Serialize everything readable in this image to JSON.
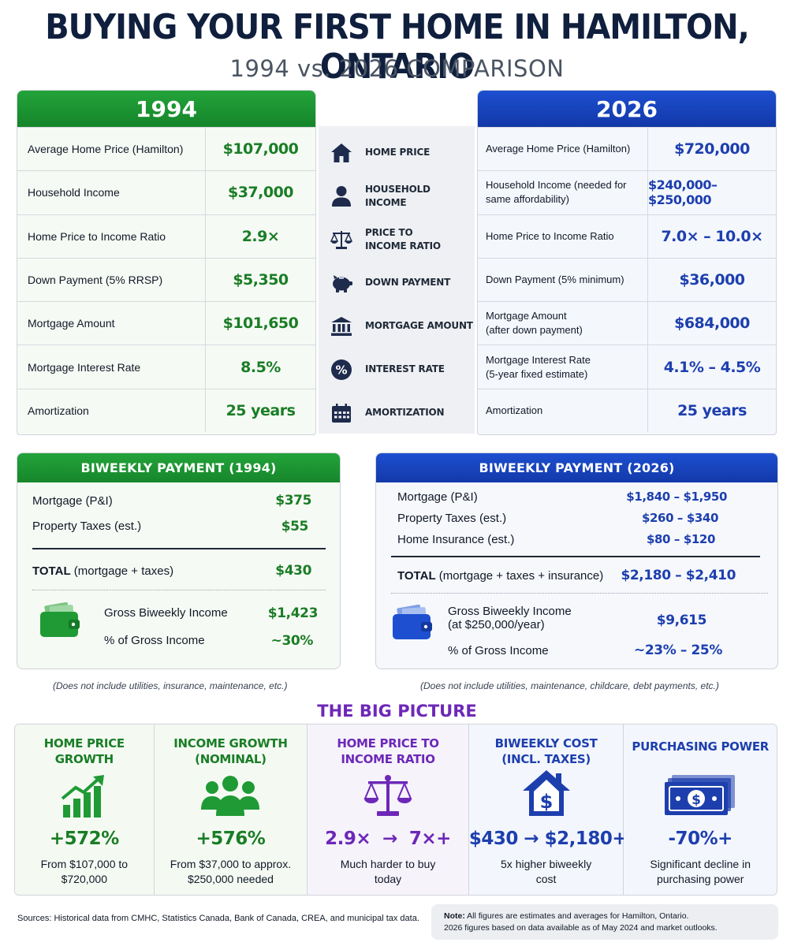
{
  "header": {
    "title": "BUYING YOUR FIRST HOME IN HAMILTON, ONTARIO",
    "subtitle": "1994 vs. 2026 COMPARISON"
  },
  "table_1994": {
    "year": "1994",
    "rows": [
      {
        "label": "Average Home Price (Hamilton)",
        "value": "$107,000"
      },
      {
        "label": "Household Income",
        "value": "$37,000"
      },
      {
        "label": "Home Price to Income Ratio",
        "value": "2.9×"
      },
      {
        "label": "Down Payment (5% RRSP)",
        "value": "$5,350"
      },
      {
        "label": "Mortgage Amount",
        "value": "$101,650"
      },
      {
        "label": "Mortgage Interest Rate",
        "value": "8.5%"
      },
      {
        "label": "Amortization",
        "value": "25 years"
      }
    ]
  },
  "categories": [
    {
      "icon": "house-icon",
      "label_1": "HOME PRICE",
      "label_2": ""
    },
    {
      "icon": "person-icon",
      "label_1": "HOUSEHOLD INCOME",
      "label_2": ""
    },
    {
      "icon": "scales-icon",
      "label_1": "PRICE TO",
      "label_2": "INCOME RATIO"
    },
    {
      "icon": "piggy-bank-icon",
      "label_1": "DOWN PAYMENT",
      "label_2": ""
    },
    {
      "icon": "bank-icon",
      "label_1": "MORTGAGE AMOUNT",
      "label_2": ""
    },
    {
      "icon": "percent-icon",
      "label_1": "INTEREST RATE",
      "label_2": ""
    },
    {
      "icon": "calendar-icon",
      "label_1": "AMORTIZATION",
      "label_2": ""
    }
  ],
  "table_2026": {
    "year": "2026",
    "rows": [
      {
        "label_1": "Average Home Price (Hamilton)",
        "label_2": "",
        "value": "$720,000"
      },
      {
        "label_1": "Household Income (needed for",
        "label_2": "same affordability)",
        "value": "$240,000–$250,000"
      },
      {
        "label_1": "Home Price to Income Ratio",
        "label_2": "",
        "value": "7.0× – 10.0×"
      },
      {
        "label_1": "Down Payment (5% minimum)",
        "label_2": "",
        "value": "$36,000"
      },
      {
        "label_1": "Mortgage Amount",
        "label_2": "(after down payment)",
        "value": "$684,000"
      },
      {
        "label_1": "Mortgage Interest Rate",
        "label_2": "(5-year fixed estimate)",
        "value": "4.1% – 4.5%"
      },
      {
        "label_1": "Amortization",
        "label_2": "",
        "value": "25 years"
      }
    ]
  },
  "biweekly_1994": {
    "title": "BIWEEKLY PAYMENT (1994)",
    "mortgage_label": "Mortgage (P&I)",
    "mortgage_value": "$375",
    "taxes_label": "Property Taxes (est.)",
    "taxes_value": "$55",
    "total_bold": "TOTAL",
    "total_rest": " (mortgage + taxes)",
    "total_value": "$430",
    "income_label": "Gross Biweekly Income",
    "income_value": "$1,423",
    "pct_label": "% of Gross Income",
    "pct_value": "~30%",
    "note": "(Does not include utilities, insurance, maintenance, etc.)"
  },
  "biweekly_2026": {
    "title": "BIWEEKLY PAYMENT (2026)",
    "mortgage_label": "Mortgage (P&I)",
    "mortgage_value": "$1,840 – $1,950",
    "taxes_label": "Property Taxes (est.)",
    "taxes_value": "$260 – $340",
    "insurance_label": "Home Insurance (est.)",
    "insurance_value": "$80 – $120",
    "total_bold": "TOTAL",
    "total_rest": " (mortgage + taxes + insurance)",
    "total_value": "$2,180 – $2,410",
    "income_label_1": "Gross Biweekly Income",
    "income_label_2": "(at $250,000/year)",
    "income_value": "$9,615",
    "pct_label": "% of Gross Income",
    "pct_value": "~23% – 25%",
    "note": "(Does not include utilities, maintenance, childcare, debt payments, etc.)"
  },
  "big_picture": {
    "title": "THE BIG PICTURE",
    "cells": [
      {
        "title_1": "HOME PRICE",
        "title_2": "GROWTH",
        "icon": "growth-chart-icon",
        "big": "+572%",
        "desc_1": "From $107,000 to",
        "desc_2": "$720,000",
        "color": "#1a7d26"
      },
      {
        "title_1": "INCOME GROWTH",
        "title_2": "(NOMINAL)",
        "icon": "people-group-icon",
        "big": "+576%",
        "desc_1": "From $37,000 to approx.",
        "desc_2": "$250,000 needed",
        "color": "#1a7d26"
      },
      {
        "title_1": "HOME PRICE TO",
        "title_2": "INCOME RATIO",
        "icon": "scales-icon",
        "big_left": "2.9×",
        "arrow": "→",
        "big_right": "7×+",
        "desc_1": "Much harder to buy",
        "desc_2": "today",
        "color": "#6d28b8"
      },
      {
        "title_1": "BIWEEKLY COST",
        "title_2": "(INCL. TAXES)",
        "icon": "house-dollar-icon",
        "big_left": "$430",
        "arrow": "→",
        "big_right": "$2,180+",
        "desc_1": "5x higher biweekly",
        "desc_2": "cost",
        "color": "#1d3fae"
      },
      {
        "title_1": "PURCHASING POWER",
        "title_2": "",
        "icon": "banknote-icon",
        "big": "-70%+",
        "desc_1": "Significant decline in",
        "desc_2": "purchasing power",
        "color": "#1d3fae"
      }
    ]
  },
  "footer": {
    "sources": "Sources: Historical data from CMHC, Statistics Canada, Bank of Canada, CREA, and municipal tax data.",
    "note_bold": "Note:",
    "note_line_1": " All figures are estimates and averages for Hamilton, Ontario.",
    "note_line_2": "2026 figures based on data available as of May 2024 and market outlooks."
  }
}
